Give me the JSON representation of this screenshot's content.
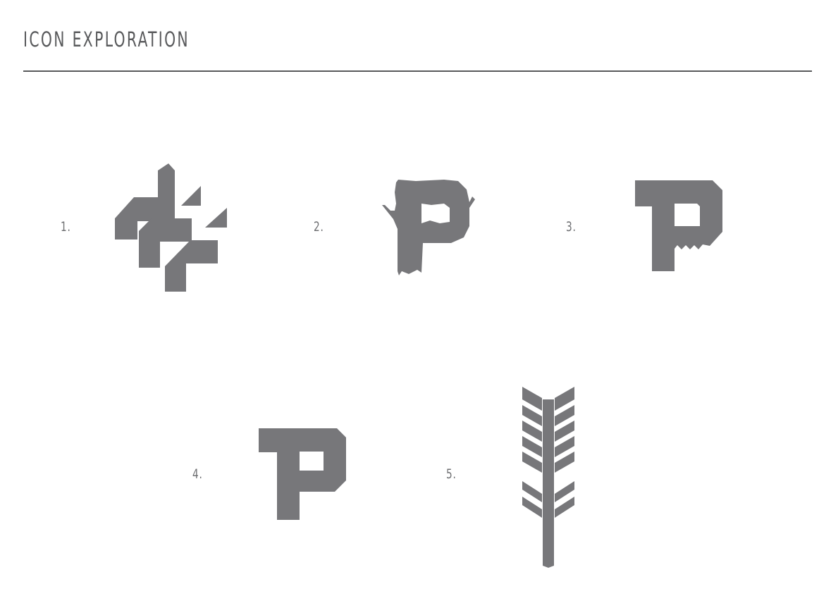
{
  "header": {
    "title": "ICON EXPLORATION"
  },
  "colors": {
    "icon_fill": "#77777a",
    "text": "#58595b",
    "rule": "#58595b",
    "background": "#ffffff"
  },
  "icons": [
    {
      "number": "1.",
      "icon_name": "interlocking-p-lattice-icon"
    },
    {
      "number": "2.",
      "icon_name": "tree-trunk-p-icon"
    },
    {
      "number": "3.",
      "icon_name": "saw-p-icon"
    },
    {
      "number": "4.",
      "icon_name": "hammer-p-icon"
    },
    {
      "number": "5.",
      "icon_name": "wheat-stalk-icon"
    }
  ]
}
